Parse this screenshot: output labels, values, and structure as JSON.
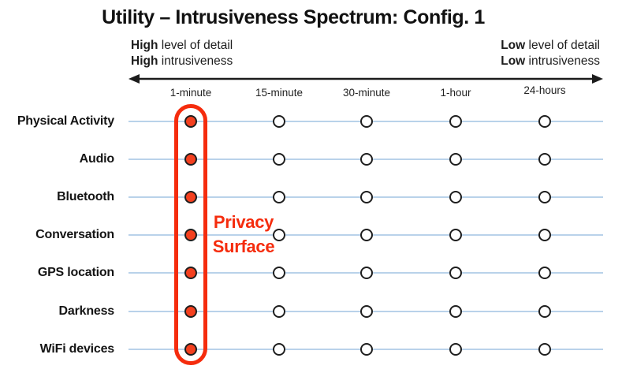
{
  "title": "Utility – Intrusiveness Spectrum: Config. 1",
  "spectrum": {
    "left": [
      {
        "em": "High",
        "text": " level of detail"
      },
      {
        "em": "High",
        "text": " intrusiveness"
      }
    ],
    "right": [
      {
        "em": "Low",
        "text": " level of detail"
      },
      {
        "em": "Low",
        "text": " intrusiveness"
      }
    ]
  },
  "columns": [
    {
      "label": "1-minute"
    },
    {
      "label": "15-minute"
    },
    {
      "label": "30-minute"
    },
    {
      "label": "1-hour"
    },
    {
      "label": "24-hours"
    }
  ],
  "rows": [
    {
      "label": "Physical Activity"
    },
    {
      "label": "Audio"
    },
    {
      "label": "Bluetooth"
    },
    {
      "label": "Conversation"
    },
    {
      "label": "GPS location"
    },
    {
      "label": "Darkness"
    },
    {
      "label": "WiFi devices"
    }
  ],
  "grid": {
    "filled_column": "1-minute",
    "cells": [
      [
        true,
        false,
        false,
        false,
        false
      ],
      [
        true,
        false,
        false,
        false,
        false
      ],
      [
        true,
        false,
        false,
        false,
        false
      ],
      [
        true,
        false,
        false,
        false,
        false
      ],
      [
        true,
        false,
        false,
        false,
        false
      ],
      [
        true,
        false,
        false,
        false,
        false
      ],
      [
        true,
        false,
        false,
        false,
        false
      ]
    ]
  },
  "annotation": {
    "label": "Privacy Surface",
    "lines": [
      "Privacy",
      "Surface"
    ]
  },
  "colors": {
    "accent_red": "#f52c0d",
    "dot_red": "#f4401f",
    "line_blue": "#b9d2ea",
    "text_black": "#151515"
  }
}
